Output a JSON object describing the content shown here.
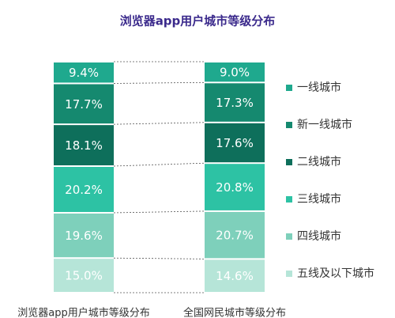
{
  "chart_data": {
    "type": "stacked-bar",
    "title": "浏览器app用户城市等级分布",
    "categories": [
      "浏览器app用户城市等级分布",
      "全国网民城市等级分布"
    ],
    "series": [
      {
        "name": "一线城市",
        "color": "#1fa98e",
        "values": [
          9.4,
          9.0
        ],
        "value_labels": [
          "9.4%",
          "9.0%"
        ]
      },
      {
        "name": "新一线城市",
        "color": "#15896f",
        "values": [
          17.7,
          17.3
        ],
        "value_labels": [
          "17.7%",
          "17.3%"
        ]
      },
      {
        "name": "二线城市",
        "color": "#0e6f5b",
        "values": [
          18.1,
          17.6
        ],
        "value_labels": [
          "18.1%",
          "17.6%"
        ]
      },
      {
        "name": "三线城市",
        "color": "#2dc2a4",
        "values": [
          20.2,
          20.8
        ],
        "value_labels": [
          "20.2%",
          "20.8%"
        ]
      },
      {
        "name": "四线城市",
        "color": "#7ed0bb",
        "values": [
          19.6,
          20.7
        ],
        "value_labels": [
          "19.6%",
          "20.7%"
        ]
      },
      {
        "name": "五线及以下城市",
        "color": "#b6e5d8",
        "values": [
          15.0,
          14.6
        ],
        "value_labels": [
          "15.0%",
          "14.6%"
        ]
      }
    ]
  }
}
